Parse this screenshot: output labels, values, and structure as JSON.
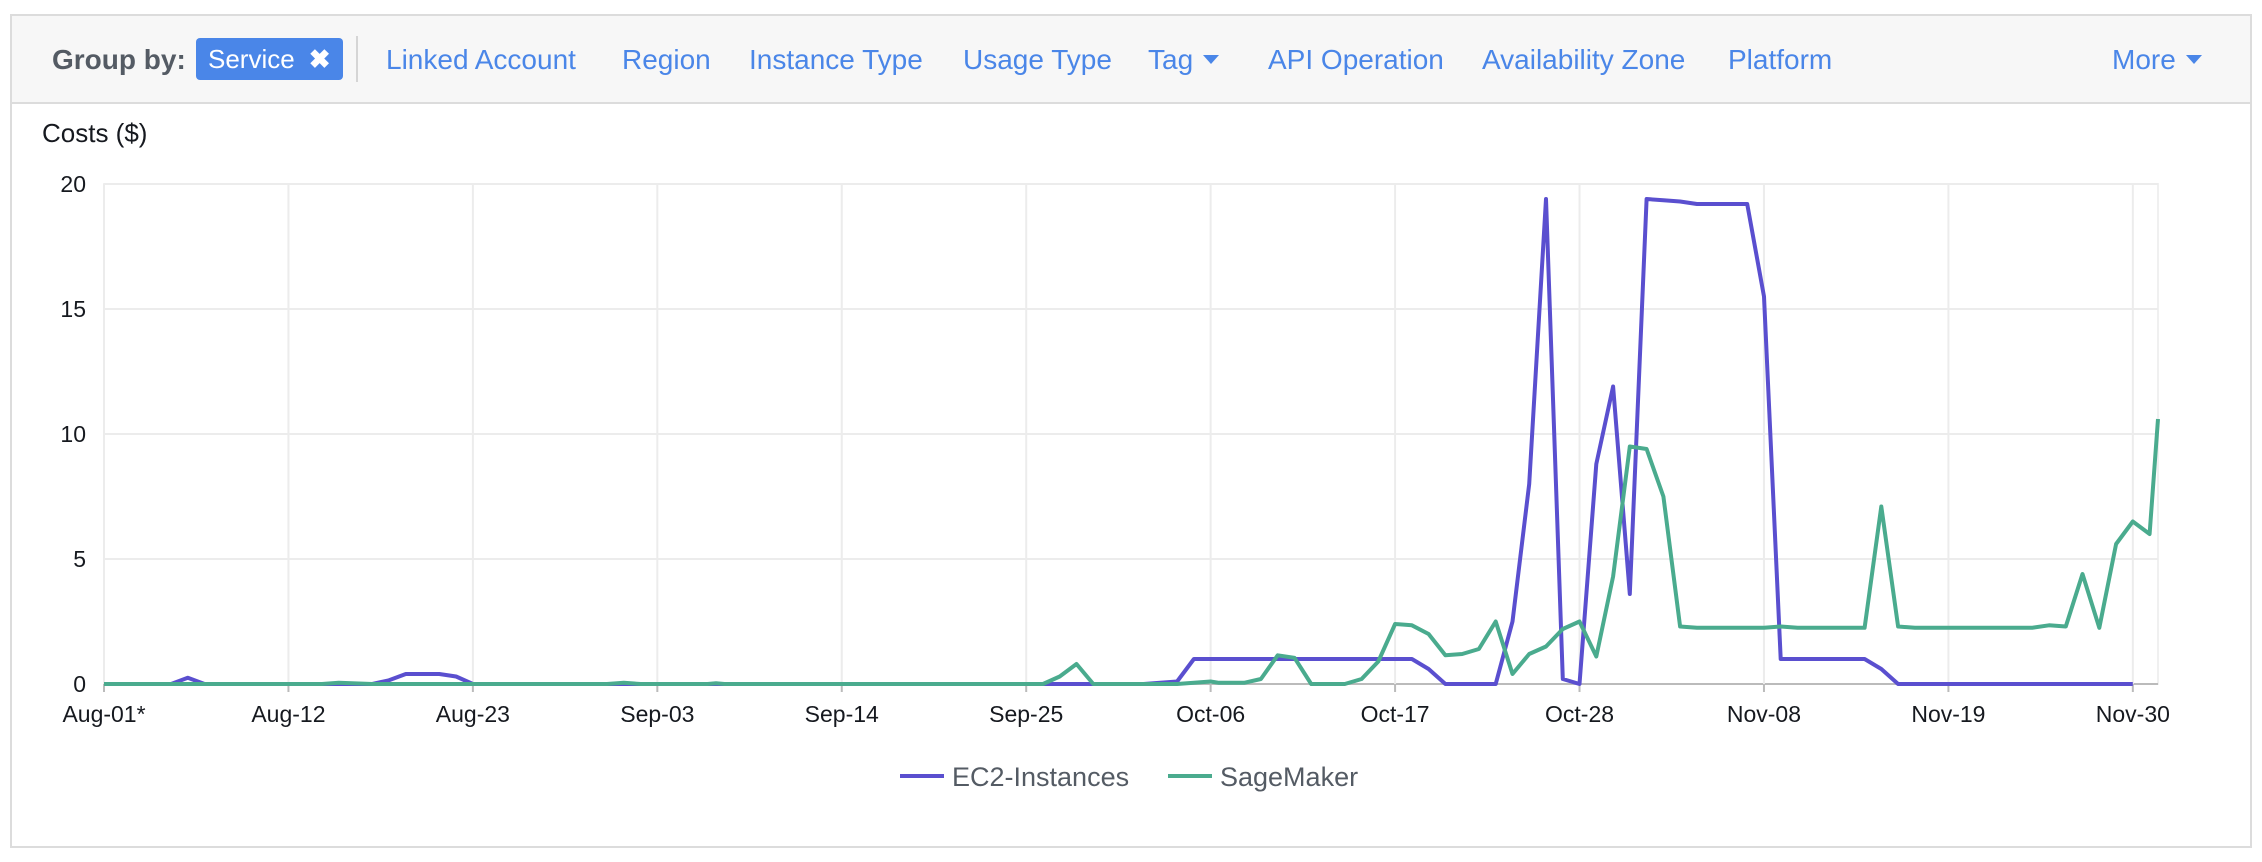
{
  "toolbar": {
    "group_by_label": "Group by:",
    "chip_label": "Service",
    "chip_remove": "✖",
    "options": [
      "Linked Account",
      "Region",
      "Instance Type",
      "Usage Type",
      "Tag",
      "API Operation",
      "Availability Zone",
      "Platform"
    ],
    "more_label": "More"
  },
  "chart_data": {
    "type": "line",
    "title": "",
    "ylabel": "Costs ($)",
    "xlabel": "",
    "ylim": [
      0,
      20
    ],
    "yticks": [
      0,
      5,
      10,
      15,
      20
    ],
    "x_tick_labels": [
      "Aug-01*",
      "Aug-12",
      "Aug-23",
      "Sep-03",
      "Sep-14",
      "Sep-25",
      "Oct-06",
      "Oct-17",
      "Oct-28",
      "Nov-08",
      "Nov-19",
      "Nov-30"
    ],
    "x_tick_days": [
      0,
      11,
      22,
      33,
      44,
      55,
      66,
      77,
      88,
      99,
      110,
      121
    ],
    "x_start": "2018-08-01",
    "x_end": "2018-11-30",
    "grid": true,
    "legend_position": "bottom",
    "series": [
      {
        "name": "EC2-Instances",
        "color": "#5a4fcf",
        "points": [
          [
            0,
            0
          ],
          [
            4,
            0
          ],
          [
            5,
            0.25
          ],
          [
            6,
            0
          ],
          [
            16,
            0
          ],
          [
            17,
            0.15
          ],
          [
            18,
            0.4
          ],
          [
            20,
            0.4
          ],
          [
            21,
            0.3
          ],
          [
            22,
            0
          ],
          [
            62,
            0
          ],
          [
            63,
            0.05
          ],
          [
            64,
            0.1
          ],
          [
            65,
            1
          ],
          [
            78,
            1
          ],
          [
            79,
            0.6
          ],
          [
            80,
            0
          ],
          [
            83,
            0
          ],
          [
            84,
            2.5
          ],
          [
            85,
            8
          ],
          [
            86,
            19.4
          ],
          [
            87,
            0.2
          ],
          [
            88,
            0
          ],
          [
            89,
            8.8
          ],
          [
            90,
            11.9
          ],
          [
            91,
            3.6
          ],
          [
            92,
            19.4
          ],
          [
            93,
            19.35
          ],
          [
            94,
            19.3
          ],
          [
            95,
            19.2
          ],
          [
            98,
            19.2
          ],
          [
            99,
            15.5
          ],
          [
            100,
            1
          ],
          [
            105,
            1
          ],
          [
            106,
            0.6
          ],
          [
            107,
            0
          ],
          [
            121,
            0
          ]
        ]
      },
      {
        "name": "SageMaker",
        "color": "#4aab8e",
        "points": [
          [
            0,
            0
          ],
          [
            13,
            0
          ],
          [
            14,
            0.05
          ],
          [
            16,
            0
          ],
          [
            30,
            0
          ],
          [
            31,
            0.05
          ],
          [
            32,
            0
          ],
          [
            36,
            0
          ],
          [
            36.5,
            0.03
          ],
          [
            37,
            0
          ],
          [
            56,
            0
          ],
          [
            57,
            0.3
          ],
          [
            58,
            0.8
          ],
          [
            59,
            0
          ],
          [
            64,
            0
          ],
          [
            65,
            0.05
          ],
          [
            66,
            0.1
          ],
          [
            66.5,
            0.05
          ],
          [
            68,
            0.05
          ],
          [
            69,
            0.2
          ],
          [
            70,
            1.15
          ],
          [
            71,
            1.05
          ],
          [
            72,
            0
          ],
          [
            74,
            0
          ],
          [
            75,
            0.2
          ],
          [
            76,
            0.9
          ],
          [
            77,
            2.4
          ],
          [
            78,
            2.35
          ],
          [
            79,
            2
          ],
          [
            80,
            1.15
          ],
          [
            81,
            1.2
          ],
          [
            82,
            1.4
          ],
          [
            83,
            2.5
          ],
          [
            84,
            0.4
          ],
          [
            85,
            1.2
          ],
          [
            86,
            1.5
          ],
          [
            87,
            2.2
          ],
          [
            88,
            2.5
          ],
          [
            89,
            1.1
          ],
          [
            90,
            4.3
          ],
          [
            91,
            9.5
          ],
          [
            92,
            9.4
          ],
          [
            93,
            7.5
          ],
          [
            94,
            2.3
          ],
          [
            95,
            2.25
          ],
          [
            96,
            2.25
          ],
          [
            99,
            2.25
          ],
          [
            100,
            2.3
          ],
          [
            101,
            2.25
          ],
          [
            105,
            2.25
          ],
          [
            106,
            7.1
          ],
          [
            107,
            2.3
          ],
          [
            108,
            2.25
          ],
          [
            115,
            2.25
          ],
          [
            116,
            2.35
          ],
          [
            117,
            2.3
          ],
          [
            118,
            4.4
          ],
          [
            119,
            2.25
          ],
          [
            120,
            5.6
          ],
          [
            121,
            6.5
          ],
          [
            122,
            6.0
          ],
          [
            122.5,
            10.6
          ]
        ]
      }
    ]
  }
}
